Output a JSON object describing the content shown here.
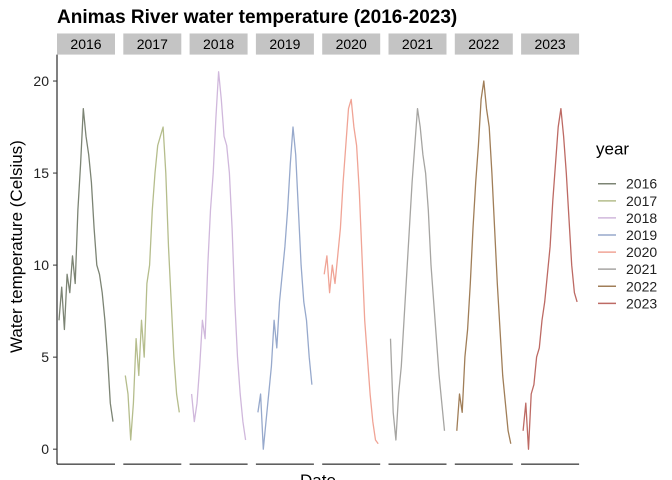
{
  "chart_data": {
    "type": "line",
    "title": "Animas River water temperature (2016-2023)",
    "xlabel": "Date",
    "ylabel": "Water temperature (Celsius)",
    "ylim": [
      -0.8,
      22
    ],
    "yticks": [
      0,
      5,
      10,
      15,
      20
    ],
    "grid": false,
    "legend_title": "year",
    "legend_position": "right",
    "facets": [
      "2016",
      "2017",
      "2018",
      "2019",
      "2020",
      "2021",
      "2022",
      "2023"
    ],
    "series": [
      {
        "name": "2016",
        "color": "#7c8474",
        "x": [
          0.0,
          0.05,
          0.1,
          0.15,
          0.2,
          0.25,
          0.3,
          0.35,
          0.4,
          0.45,
          0.5,
          0.55,
          0.6,
          0.65,
          0.7,
          0.75,
          0.8,
          0.85,
          0.9,
          0.95,
          1.0
        ],
        "y": [
          7.0,
          8.8,
          6.5,
          9.5,
          8.5,
          10.5,
          9.0,
          13.0,
          15.5,
          18.5,
          17.0,
          16.0,
          14.5,
          12.0,
          10.0,
          9.5,
          8.5,
          7.0,
          5.0,
          2.5,
          1.5
        ]
      },
      {
        "name": "2017",
        "color": "#b5bd8c",
        "x": [
          0.0,
          0.05,
          0.1,
          0.15,
          0.2,
          0.25,
          0.3,
          0.35,
          0.4,
          0.45,
          0.5,
          0.55,
          0.6,
          0.65,
          0.7,
          0.75,
          0.8,
          0.85,
          0.9,
          0.95,
          1.0
        ],
        "y": [
          4.0,
          3.0,
          0.5,
          2.5,
          6.0,
          4.0,
          7.0,
          5.0,
          9.0,
          10.0,
          13.0,
          15.0,
          16.5,
          17.0,
          17.5,
          15.0,
          11.0,
          8.0,
          5.0,
          3.0,
          2.0
        ]
      },
      {
        "name": "2018",
        "color": "#d0b8dc",
        "x": [
          0.0,
          0.05,
          0.1,
          0.15,
          0.2,
          0.25,
          0.3,
          0.35,
          0.4,
          0.45,
          0.5,
          0.55,
          0.6,
          0.65,
          0.7,
          0.75,
          0.8,
          0.85,
          0.9,
          0.95,
          1.0
        ],
        "y": [
          3.0,
          1.5,
          2.5,
          4.5,
          7.0,
          6.0,
          10.0,
          13.0,
          15.0,
          18.0,
          20.5,
          19.0,
          17.0,
          16.5,
          15.0,
          12.0,
          8.0,
          5.0,
          3.0,
          1.5,
          0.5
        ]
      },
      {
        "name": "2019",
        "color": "#97a9cc",
        "x": [
          0.0,
          0.05,
          0.1,
          0.15,
          0.2,
          0.25,
          0.3,
          0.35,
          0.4,
          0.45,
          0.5,
          0.55,
          0.6,
          0.65,
          0.7,
          0.75,
          0.8,
          0.85,
          0.9,
          0.95,
          1.0
        ],
        "y": [
          2.0,
          3.0,
          0.0,
          1.5,
          3.0,
          4.5,
          7.0,
          5.5,
          8.0,
          9.5,
          11.0,
          13.0,
          15.5,
          17.5,
          16.0,
          13.0,
          10.0,
          8.0,
          7.0,
          5.0,
          3.5
        ]
      },
      {
        "name": "2020",
        "color": "#f0a496",
        "x": [
          0.0,
          0.05,
          0.1,
          0.15,
          0.2,
          0.25,
          0.3,
          0.35,
          0.4,
          0.45,
          0.5,
          0.55,
          0.6,
          0.65,
          0.7,
          0.75,
          0.8,
          0.85,
          0.9,
          0.95,
          1.0
        ],
        "y": [
          9.5,
          10.5,
          8.5,
          10.0,
          9.0,
          10.5,
          12.0,
          14.5,
          16.5,
          18.5,
          19.0,
          17.5,
          16.5,
          14.0,
          10.5,
          7.0,
          5.0,
          3.0,
          1.5,
          0.5,
          0.3
        ]
      },
      {
        "name": "2021",
        "color": "#a6a5a2",
        "x": [
          0.0,
          0.05,
          0.1,
          0.15,
          0.2,
          0.25,
          0.3,
          0.35,
          0.4,
          0.45,
          0.5,
          0.55,
          0.6,
          0.65,
          0.7,
          0.75,
          0.8,
          0.85,
          0.9,
          0.95,
          1.0
        ],
        "y": [
          6.0,
          2.0,
          0.5,
          3.0,
          4.5,
          7.0,
          9.5,
          12.0,
          14.5,
          16.5,
          18.5,
          17.5,
          16.0,
          15.0,
          13.0,
          10.0,
          8.0,
          6.0,
          4.0,
          2.5,
          1.0
        ]
      },
      {
        "name": "2022",
        "color": "#a07e58",
        "x": [
          0.0,
          0.05,
          0.1,
          0.15,
          0.2,
          0.25,
          0.3,
          0.35,
          0.4,
          0.45,
          0.5,
          0.55,
          0.6,
          0.65,
          0.7,
          0.75,
          0.8,
          0.85,
          0.9,
          0.95,
          1.0
        ],
        "y": [
          1.0,
          3.0,
          2.0,
          5.0,
          6.5,
          9.0,
          12.0,
          14.5,
          16.5,
          19.0,
          20.0,
          18.5,
          17.5,
          15.0,
          12.0,
          9.0,
          6.5,
          4.0,
          2.5,
          1.0,
          0.3
        ]
      },
      {
        "name": "2023",
        "color": "#bd6a64",
        "x": [
          0.0,
          0.05,
          0.1,
          0.15,
          0.2,
          0.25,
          0.3,
          0.35,
          0.4,
          0.45,
          0.5,
          0.55,
          0.6,
          0.65,
          0.7,
          0.75,
          0.8,
          0.85,
          0.9,
          0.95,
          1.0
        ],
        "y": [
          1.0,
          2.5,
          0.0,
          3.0,
          3.5,
          5.0,
          5.5,
          7.0,
          8.0,
          9.5,
          11.0,
          13.5,
          15.5,
          17.5,
          18.5,
          17.0,
          15.0,
          12.5,
          10.0,
          8.5,
          8.0
        ]
      }
    ]
  }
}
